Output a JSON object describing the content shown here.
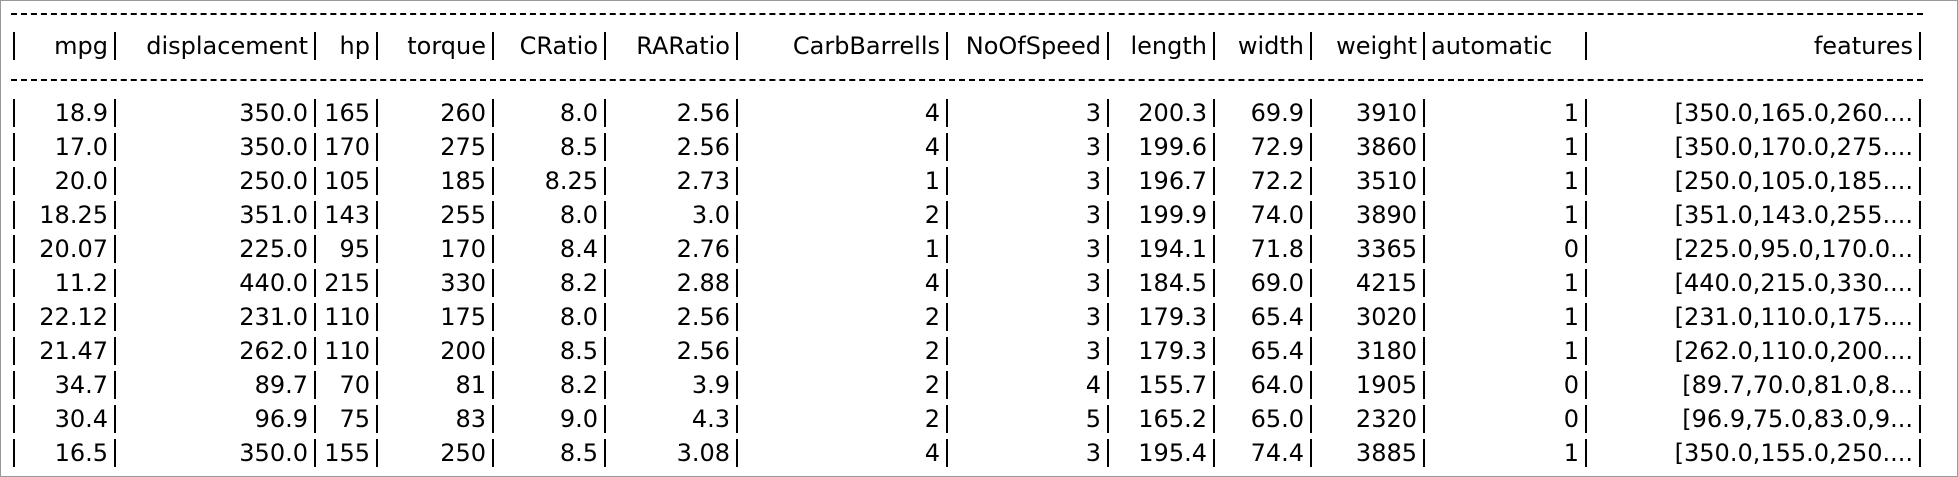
{
  "table": {
    "header": [
      "mpg",
      "displacement",
      "hp",
      "torque",
      "CRatio",
      "RARatio",
      "CarbBarrells",
      "NoOfSpeed",
      "length",
      "width",
      "weight",
      "automatic",
      "features"
    ],
    "rows": [
      [
        "18.9",
        "350.0",
        "165",
        "260",
        "8.0",
        "2.56",
        "4",
        "3",
        "200.3",
        "69.9",
        "3910",
        "1",
        "[350.0,165.0,260...."
      ],
      [
        "17.0",
        "350.0",
        "170",
        "275",
        "8.5",
        "2.56",
        "4",
        "3",
        "199.6",
        "72.9",
        "3860",
        "1",
        "[350.0,170.0,275...."
      ],
      [
        "20.0",
        "250.0",
        "105",
        "185",
        "8.25",
        "2.73",
        "1",
        "3",
        "196.7",
        "72.2",
        "3510",
        "1",
        "[250.0,105.0,185...."
      ],
      [
        "18.25",
        "351.0",
        "143",
        "255",
        "8.0",
        "3.0",
        "2",
        "3",
        "199.9",
        "74.0",
        "3890",
        "1",
        "[351.0,143.0,255...."
      ],
      [
        "20.07",
        "225.0",
        "95",
        "170",
        "8.4",
        "2.76",
        "1",
        "3",
        "194.1",
        "71.8",
        "3365",
        "0",
        "[225.0,95.0,170.0..."
      ],
      [
        "11.2",
        "440.0",
        "215",
        "330",
        "8.2",
        "2.88",
        "4",
        "3",
        "184.5",
        "69.0",
        "4215",
        "1",
        "[440.0,215.0,330...."
      ],
      [
        "22.12",
        "231.0",
        "110",
        "175",
        "8.0",
        "2.56",
        "2",
        "3",
        "179.3",
        "65.4",
        "3020",
        "1",
        "[231.0,110.0,175...."
      ],
      [
        "21.47",
        "262.0",
        "110",
        "200",
        "8.5",
        "2.56",
        "2",
        "3",
        "179.3",
        "65.4",
        "3180",
        "1",
        "[262.0,110.0,200...."
      ],
      [
        "34.7",
        "89.7",
        "70",
        "81",
        "8.2",
        "3.9",
        "2",
        "4",
        "155.7",
        "64.0",
        "1905",
        "0",
        "[89.7,70.0,81.0,8..."
      ],
      [
        "30.4",
        "96.9",
        "75",
        "83",
        "9.0",
        "4.3",
        "2",
        "5",
        "165.2",
        "65.0",
        "2320",
        "0",
        "[96.9,75.0,83.0,9..."
      ],
      [
        "16.5",
        "350.0",
        "155",
        "250",
        "8.5",
        "3.08",
        "4",
        "3",
        "195.4",
        "74.4",
        "3885",
        "1",
        "[350.0,155.0,250...."
      ]
    ]
  }
}
